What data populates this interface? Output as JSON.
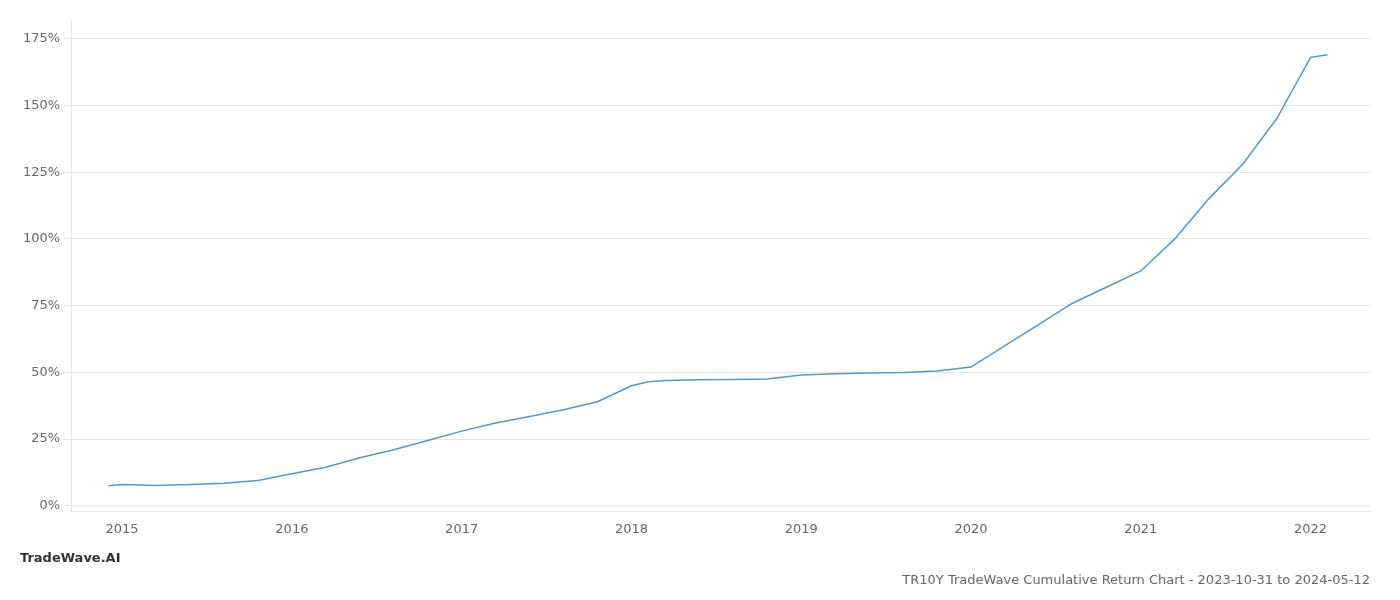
{
  "chart_data": {
    "type": "line",
    "title": "TR10Y TradeWave Cumulative Return Chart - 2023-10-31 to 2024-05-12",
    "annotations": [
      "TradeWave.AI"
    ],
    "color": "#5599cc",
    "x": [
      2014.92,
      2015.0,
      2015.1,
      2015.2,
      2015.4,
      2015.6,
      2015.8,
      2016.0,
      2016.2,
      2016.4,
      2016.6,
      2016.8,
      2017.0,
      2017.2,
      2017.4,
      2017.6,
      2017.8,
      2018.0,
      2018.1,
      2018.2,
      2018.4,
      2018.6,
      2018.8,
      2019.0,
      2019.2,
      2019.4,
      2019.6,
      2019.8,
      2020.0,
      2020.2,
      2020.4,
      2020.6,
      2020.8,
      2021.0,
      2021.2,
      2021.4,
      2021.6,
      2021.8,
      2022.0,
      2022.1
    ],
    "values": [
      7.5,
      8.0,
      7.8,
      7.6,
      8.0,
      8.5,
      9.5,
      12.0,
      14.5,
      18.0,
      21.0,
      24.5,
      28.0,
      31.0,
      33.5,
      36.0,
      39.0,
      45.0,
      46.5,
      47.0,
      47.2,
      47.3,
      47.5,
      49.0,
      49.5,
      49.8,
      50.0,
      50.5,
      52.0,
      60.0,
      68.0,
      76.0,
      82.0,
      88.0,
      100.0,
      115.0,
      128.0,
      145.0,
      168.0,
      169.0
    ],
    "xlim": [
      2014.7,
      2022.35
    ],
    "ylim": [
      -2,
      182
    ],
    "xticks": [
      2015,
      2016,
      2017,
      2018,
      2019,
      2020,
      2021,
      2022
    ],
    "yticks": [
      {
        "value": 0,
        "label": "0%"
      },
      {
        "value": 25,
        "label": "25%"
      },
      {
        "value": 50,
        "label": "50%"
      },
      {
        "value": 75,
        "label": "75%"
      },
      {
        "value": 100,
        "label": "100%"
      },
      {
        "value": 125,
        "label": "125%"
      },
      {
        "value": 150,
        "label": "150%"
      },
      {
        "value": 175,
        "label": "175%"
      }
    ],
    "grid": "y"
  }
}
